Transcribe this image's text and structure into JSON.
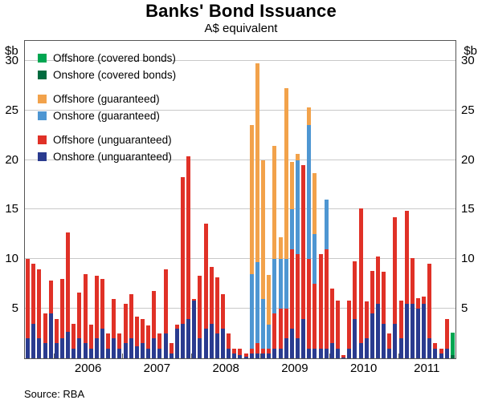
{
  "page": {
    "title": "Banks' Bond Issuance",
    "subtitle": "A$ equivalent",
    "unit_left": "$b",
    "unit_right": "$b",
    "source": "Source: RBA"
  },
  "chart_data": {
    "type": "bar",
    "stacked": true,
    "title": "Banks' Bond Issuance",
    "subtitle": "A$ equivalent",
    "ylabel": "$b",
    "ylim": [
      0,
      32
    ],
    "yticks": [
      5,
      10,
      15,
      20,
      25,
      30
    ],
    "grid": true,
    "legend_position": "top-left",
    "x_year_labels": [
      "2006",
      "2007",
      "2008",
      "2009",
      "2010",
      "2011"
    ],
    "months": [
      "2005-08",
      "2005-09",
      "2005-10",
      "2005-11",
      "2005-12",
      "2006-01",
      "2006-02",
      "2006-03",
      "2006-04",
      "2006-05",
      "2006-06",
      "2006-07",
      "2006-08",
      "2006-09",
      "2006-10",
      "2006-11",
      "2006-12",
      "2007-01",
      "2007-02",
      "2007-03",
      "2007-04",
      "2007-05",
      "2007-06",
      "2007-07",
      "2007-08",
      "2007-09",
      "2007-10",
      "2007-11",
      "2007-12",
      "2008-01",
      "2008-02",
      "2008-03",
      "2008-04",
      "2008-05",
      "2008-06",
      "2008-07",
      "2008-08",
      "2008-09",
      "2008-10",
      "2008-11",
      "2008-12",
      "2009-01",
      "2009-02",
      "2009-03",
      "2009-04",
      "2009-05",
      "2009-06",
      "2009-07",
      "2009-08",
      "2009-09",
      "2009-10",
      "2009-11",
      "2009-12",
      "2010-01",
      "2010-02",
      "2010-03",
      "2010-04",
      "2010-05",
      "2010-06",
      "2010-07",
      "2010-08",
      "2010-09",
      "2010-10",
      "2010-11",
      "2010-12",
      "2011-01",
      "2011-02",
      "2011-03",
      "2011-04",
      "2011-05",
      "2011-06",
      "2011-07",
      "2011-08",
      "2011-09",
      "2011-10"
    ],
    "series": [
      {
        "name": "Onshore (unguaranteed)",
        "color": "#2A3B8F",
        "values": [
          2.0,
          3.5,
          2.0,
          1.5,
          4.5,
          1.5,
          2.0,
          2.7,
          1.0,
          2.0,
          1.5,
          1.0,
          2.0,
          3.0,
          1.0,
          2.0,
          1.0,
          1.5,
          2.0,
          1.2,
          1.5,
          1.0,
          2.0,
          1.0,
          2.5,
          0.5,
          3.0,
          3.5,
          4.0,
          5.8,
          2.0,
          3.0,
          3.5,
          2.5,
          3.0,
          1.0,
          0.5,
          0.3,
          0.2,
          0.5,
          0.5,
          0.5,
          0.5,
          1.0,
          1.0,
          2.0,
          3.0,
          2.0,
          4.0,
          1.0,
          1.0,
          1.0,
          1.0,
          1.5,
          1.0,
          0.1,
          1.0,
          4.0,
          1.5,
          2.0,
          4.5,
          5.5,
          3.5,
          1.0,
          3.5,
          2.0,
          5.5,
          5.5,
          5.0,
          5.5,
          2.0,
          1.0,
          0.5,
          1.0,
          0
        ]
      },
      {
        "name": "Offshore (unguaranteed)",
        "color": "#E03127",
        "values": [
          8.0,
          6.0,
          7.0,
          3.0,
          3.3,
          2.5,
          6.0,
          10.0,
          2.5,
          4.6,
          7.0,
          2.4,
          6.3,
          5.0,
          1.5,
          4.0,
          1.5,
          4.0,
          4.5,
          3.0,
          2.5,
          2.3,
          4.8,
          1.5,
          6.5,
          1.0,
          0.4,
          14.8,
          16.4,
          0.2,
          6.3,
          10.6,
          5.7,
          5.7,
          3.5,
          1.5,
          0.5,
          0.7,
          0.3,
          0.5,
          1.0,
          0.5,
          0.5,
          3.5,
          4.0,
          3.0,
          8.0,
          8.5,
          15.5,
          9.0,
          6.5,
          9.5,
          10.0,
          5.5,
          4.8,
          0.2,
          4.8,
          5.8,
          13.6,
          3.7,
          4.3,
          4.8,
          5.2,
          1.5,
          10.7,
          3.8,
          9.4,
          4.6,
          1.1,
          0.7,
          7.5,
          0.5,
          0.5,
          3.0,
          0
        ]
      },
      {
        "name": "Onshore (guaranteed)",
        "color": "#4E96D2",
        "values": [
          0,
          0,
          0,
          0,
          0,
          0,
          0,
          0,
          0,
          0,
          0,
          0,
          0,
          0,
          0,
          0,
          0,
          0,
          0,
          0,
          0,
          0,
          0,
          0,
          0,
          0,
          0,
          0,
          0,
          0,
          0,
          0,
          0,
          0,
          0,
          0,
          0,
          0,
          0,
          7.5,
          8.2,
          5.0,
          2.4,
          5.5,
          5.0,
          5.0,
          4.0,
          9.5,
          0,
          13.5,
          5.0,
          0,
          5.0,
          0,
          0,
          0,
          0,
          0,
          0,
          0,
          0,
          0,
          0,
          0,
          0,
          0,
          0,
          0,
          0,
          0,
          0,
          0,
          0,
          0,
          0
        ]
      },
      {
        "name": "Offshore (guaranteed)",
        "color": "#F2A24B",
        "values": [
          0,
          0,
          0,
          0,
          0,
          0,
          0,
          0,
          0,
          0,
          0,
          0,
          0,
          0,
          0,
          0,
          0,
          0,
          0,
          0,
          0,
          0,
          0,
          0,
          0,
          0,
          0,
          0,
          0,
          0,
          0,
          0,
          0,
          0,
          0,
          0,
          0,
          0,
          0,
          15.0,
          20.0,
          14.0,
          5.0,
          11.4,
          2.2,
          17.2,
          4.8,
          0.6,
          0,
          1.8,
          6.2,
          0,
          0,
          0,
          0,
          0,
          0,
          0,
          0,
          0,
          0,
          0,
          0,
          0,
          0,
          0,
          0,
          0,
          0,
          0,
          0,
          0,
          0,
          0,
          0
        ]
      },
      {
        "name": "Onshore (covered bonds)",
        "color": "#006B3F",
        "values": [
          0,
          0,
          0,
          0,
          0,
          0,
          0,
          0,
          0,
          0,
          0,
          0,
          0,
          0,
          0,
          0,
          0,
          0,
          0,
          0,
          0,
          0,
          0,
          0,
          0,
          0,
          0,
          0,
          0,
          0,
          0,
          0,
          0,
          0,
          0,
          0,
          0,
          0,
          0,
          0,
          0,
          0,
          0,
          0,
          0,
          0,
          0,
          0,
          0,
          0,
          0,
          0,
          0,
          0,
          0,
          0,
          0,
          0,
          0,
          0,
          0,
          0,
          0,
          0,
          0,
          0,
          0,
          0,
          0,
          0,
          0,
          0,
          0,
          0,
          0.3
        ]
      },
      {
        "name": "Offshore (covered bonds)",
        "color": "#00A651",
        "values": [
          0,
          0,
          0,
          0,
          0,
          0,
          0,
          0,
          0,
          0,
          0,
          0,
          0,
          0,
          0,
          0,
          0,
          0,
          0,
          0,
          0,
          0,
          0,
          0,
          0,
          0,
          0,
          0,
          0,
          0,
          0,
          0,
          0,
          0,
          0,
          0,
          0,
          0,
          0,
          0,
          0,
          0,
          0,
          0,
          0,
          0,
          0,
          0,
          0,
          0,
          0,
          0,
          0,
          0,
          0,
          0,
          0,
          0,
          0,
          0,
          0,
          0,
          0,
          0,
          0,
          0,
          0,
          0,
          0,
          0,
          0,
          0,
          0,
          0,
          2.3
        ]
      }
    ],
    "legend": [
      {
        "label": "Offshore (covered bonds)",
        "color": "#00A651",
        "gap_after": false
      },
      {
        "label": "Onshore (covered bonds)",
        "color": "#006B3F",
        "gap_after": true
      },
      {
        "label": "Offshore (guaranteed)",
        "color": "#F2A24B",
        "gap_after": false
      },
      {
        "label": "Onshore (guaranteed)",
        "color": "#4E96D2",
        "gap_after": true
      },
      {
        "label": "Offshore (unguaranteed)",
        "color": "#E03127",
        "gap_after": false
      },
      {
        "label": "Onshore (unguaranteed)",
        "color": "#2A3B8F",
        "gap_after": false
      }
    ]
  }
}
